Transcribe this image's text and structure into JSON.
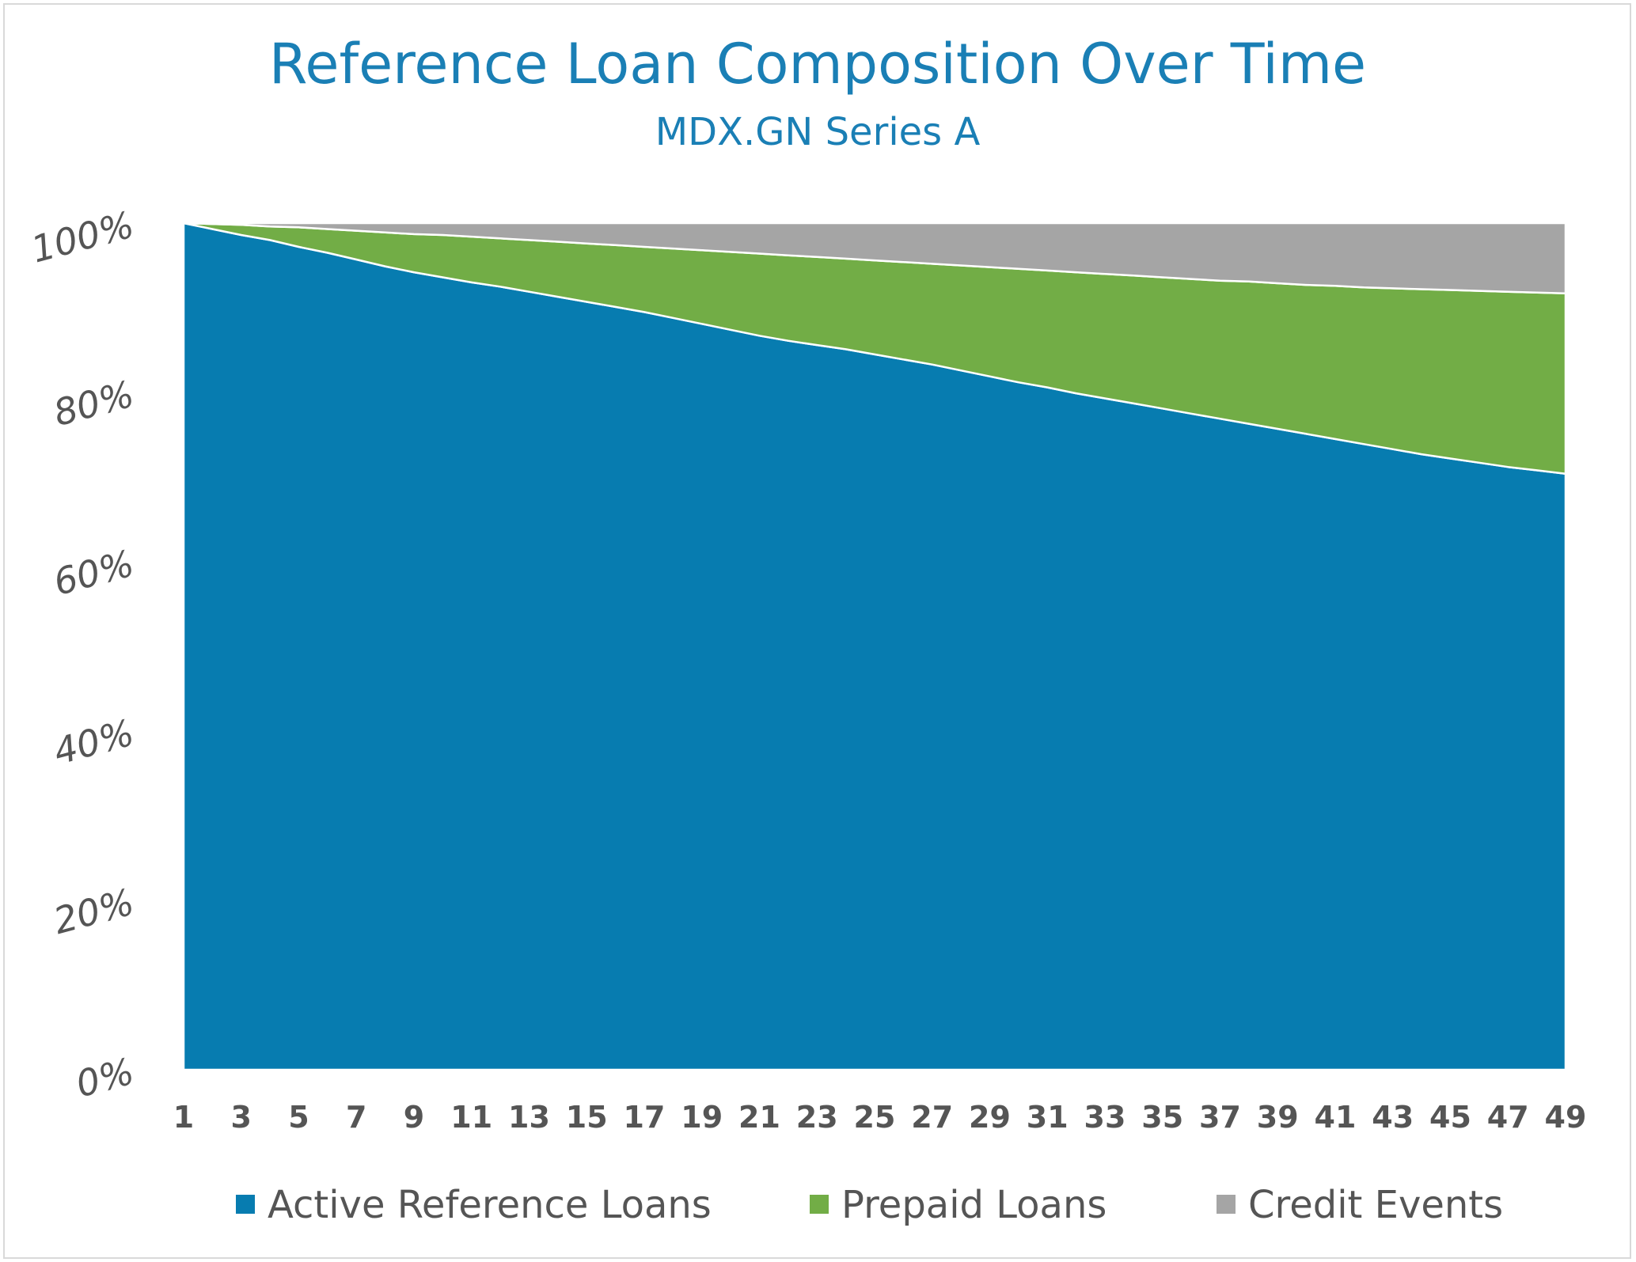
{
  "chart_data": {
    "type": "area",
    "stacked": true,
    "title": "Reference Loan Composition Over Time",
    "subtitle": "MDX.GN Series A",
    "xlabel": "",
    "ylabel": "",
    "ylim": [
      0,
      100
    ],
    "y_ticks": [
      "0%",
      "20%",
      "40%",
      "60%",
      "80%",
      "100%"
    ],
    "x_ticks": [
      "1",
      "3",
      "5",
      "7",
      "9",
      "11",
      "13",
      "15",
      "17",
      "19",
      "21",
      "23",
      "25",
      "27",
      "29",
      "31",
      "33",
      "35",
      "37",
      "39",
      "41",
      "43",
      "45",
      "47",
      "49"
    ],
    "x": [
      1,
      2,
      3,
      4,
      5,
      6,
      7,
      8,
      9,
      10,
      11,
      12,
      13,
      14,
      15,
      16,
      17,
      18,
      19,
      20,
      21,
      22,
      23,
      24,
      25,
      26,
      27,
      28,
      29,
      30,
      31,
      32,
      33,
      34,
      35,
      36,
      37,
      38,
      39,
      40,
      41,
      42,
      43,
      44,
      45,
      46,
      47,
      48,
      49
    ],
    "grid": false,
    "legend_position": "bottom",
    "series": [
      {
        "name": "Active Reference Loans",
        "color": "#077cb0",
        "values": [
          100,
          99.3,
          98.6,
          98.0,
          97.2,
          96.5,
          95.7,
          94.9,
          94.2,
          93.6,
          93.0,
          92.5,
          91.9,
          91.3,
          90.7,
          90.1,
          89.5,
          88.8,
          88.1,
          87.4,
          86.7,
          86.1,
          85.6,
          85.1,
          84.5,
          83.9,
          83.3,
          82.6,
          81.9,
          81.2,
          80.6,
          79.9,
          79.3,
          78.7,
          78.1,
          77.5,
          76.9,
          76.3,
          75.7,
          75.1,
          74.5,
          73.9,
          73.3,
          72.7,
          72.2,
          71.7,
          71.2,
          70.8,
          70.4
        ]
      },
      {
        "name": "Prepaid Loans",
        "color": "#72ad46",
        "values": [
          0,
          0.6,
          1.2,
          1.6,
          2.3,
          2.8,
          3.4,
          4.0,
          4.5,
          5.0,
          5.4,
          5.7,
          6.1,
          6.5,
          6.9,
          7.3,
          7.7,
          8.2,
          8.7,
          9.2,
          9.7,
          10.1,
          10.4,
          10.7,
          11.1,
          11.5,
          11.9,
          12.4,
          12.9,
          13.4,
          13.8,
          14.3,
          14.7,
          15.1,
          15.5,
          15.9,
          16.3,
          16.8,
          17.2,
          17.6,
          18.1,
          18.5,
          19.0,
          19.5,
          19.9,
          20.3,
          20.7,
          21.0,
          21.3
        ]
      },
      {
        "name": "Credit Events",
        "color": "#a5a5a5",
        "values": [
          0,
          0.1,
          0.2,
          0.4,
          0.5,
          0.7,
          0.9,
          1.1,
          1.3,
          1.4,
          1.6,
          1.8,
          2.0,
          2.2,
          2.4,
          2.6,
          2.8,
          3.0,
          3.2,
          3.4,
          3.6,
          3.8,
          4.0,
          4.2,
          4.4,
          4.6,
          4.8,
          5.0,
          5.2,
          5.4,
          5.6,
          5.8,
          6.0,
          6.2,
          6.4,
          6.6,
          6.8,
          6.9,
          7.1,
          7.3,
          7.4,
          7.6,
          7.7,
          7.8,
          7.9,
          8.0,
          8.1,
          8.2,
          8.3
        ]
      }
    ]
  }
}
